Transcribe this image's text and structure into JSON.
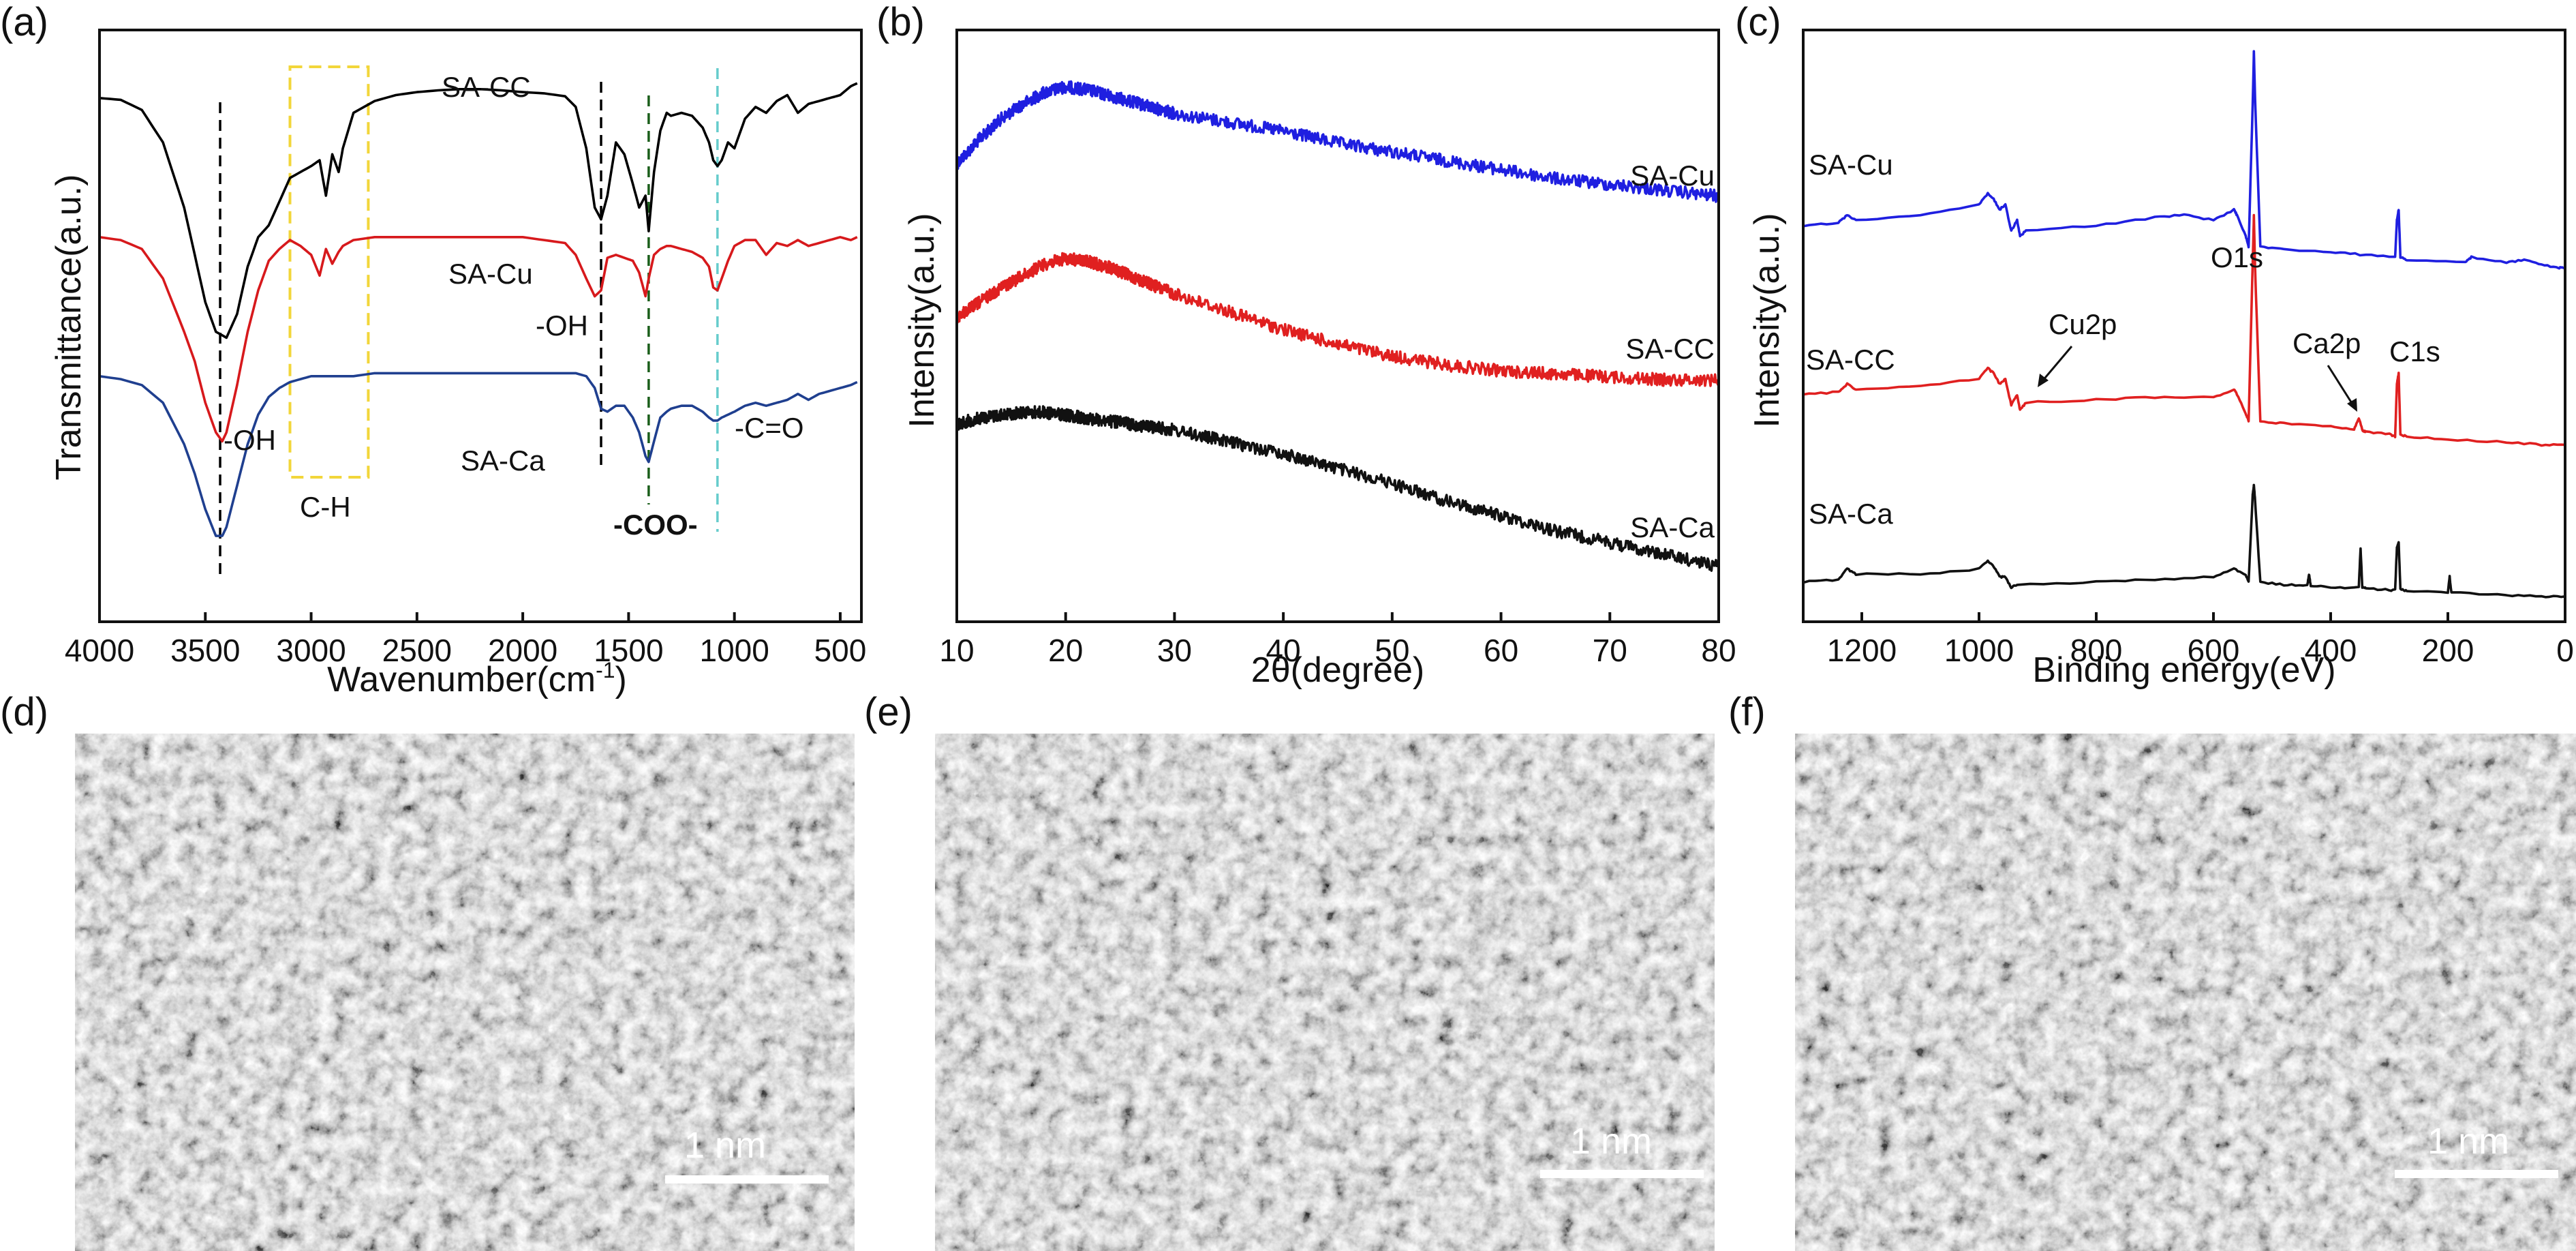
{
  "chart_data": [
    {
      "id": "a",
      "type": "line",
      "panel_label": "(a)",
      "xlabel": "Wavenumber(cm",
      "xlabel_sup": "-1",
      "xlabel_end": ")",
      "ylabel": "Transmittance(a.u.)",
      "xlim": [
        4000,
        400
      ],
      "x_ticks": [
        4000,
        3500,
        3000,
        2500,
        2000,
        1500,
        1000,
        500
      ],
      "x_tick_labels": [
        "4000",
        "3500",
        "3000",
        "2500",
        "2000",
        "1500",
        "1000",
        "500"
      ],
      "colors": [
        "#000000",
        "#d7191c",
        "#1f3f8f"
      ],
      "series": [
        {
          "name": "SA-CC",
          "color": "#000000",
          "x": [
            4000,
            3900,
            3800,
            3700,
            3600,
            3550,
            3500,
            3450,
            3400,
            3350,
            3300,
            3250,
            3200,
            3150,
            3100,
            3050,
            3000,
            2960,
            2930,
            2900,
            2870,
            2850,
            2800,
            2700,
            2600,
            2500,
            2400,
            2300,
            2200,
            2100,
            2000,
            1900,
            1800,
            1750,
            1700,
            1660,
            1630,
            1600,
            1560,
            1520,
            1480,
            1450,
            1420,
            1405,
            1380,
            1350,
            1320,
            1300,
            1250,
            1200,
            1150,
            1120,
            1100,
            1080,
            1060,
            1030,
            1000,
            950,
            900,
            850,
            800,
            750,
            700,
            650,
            600,
            550,
            500,
            450,
            420
          ],
          "y": [
            96.5,
            96.2,
            94.5,
            89,
            78,
            70,
            62,
            57,
            56,
            60,
            68,
            73,
            75,
            79,
            83,
            84,
            85,
            86,
            80,
            87,
            84,
            88,
            94,
            96,
            97,
            97.5,
            97.8,
            98,
            98,
            97.8,
            97.5,
            97.3,
            96.8,
            95,
            88,
            78,
            76,
            80,
            89,
            87,
            82,
            78,
            80,
            74,
            84,
            91,
            94,
            93.5,
            94,
            93.5,
            91.5,
            89,
            86,
            85,
            86,
            89,
            88,
            93,
            95,
            94,
            96,
            97,
            94,
            95.5,
            96,
            96.5,
            97,
            98.5,
            99
          ]
        },
        {
          "name": "SA-Cu",
          "color": "#d7191c",
          "x": [
            4000,
            3900,
            3800,
            3700,
            3600,
            3550,
            3500,
            3450,
            3420,
            3400,
            3350,
            3300,
            3250,
            3200,
            3150,
            3100,
            3050,
            3000,
            2960,
            2930,
            2900,
            2870,
            2850,
            2800,
            2700,
            2600,
            2500,
            2400,
            2300,
            2200,
            2100,
            2000,
            1900,
            1800,
            1750,
            1700,
            1660,
            1630,
            1600,
            1560,
            1520,
            1480,
            1450,
            1420,
            1405,
            1380,
            1350,
            1320,
            1300,
            1250,
            1200,
            1150,
            1120,
            1100,
            1080,
            1060,
            1030,
            1000,
            950,
            900,
            850,
            800,
            750,
            700,
            650,
            600,
            550,
            500,
            450,
            420
          ],
          "y": [
            73,
            72.5,
            71,
            66,
            57,
            52,
            45,
            40,
            38.5,
            40,
            48,
            57,
            64,
            69,
            71,
            72.5,
            71.5,
            70,
            66.5,
            71,
            68.5,
            70.5,
            71.5,
            72.5,
            73,
            73,
            73,
            73,
            73,
            73,
            73,
            73,
            72.5,
            72,
            70,
            66,
            63,
            64,
            69.5,
            70,
            69.5,
            69,
            67,
            63,
            66,
            70,
            71,
            71.5,
            71.5,
            71,
            70.5,
            69.5,
            68,
            64.5,
            64,
            66,
            69,
            71.5,
            72.5,
            72.5,
            70,
            72,
            71.5,
            72.5,
            71.5,
            72,
            72.5,
            73,
            72.5,
            73
          ]
        },
        {
          "name": "SA-Ca",
          "color": "#1f3f8f",
          "x": [
            4000,
            3900,
            3800,
            3700,
            3600,
            3550,
            3500,
            3450,
            3420,
            3400,
            3350,
            3300,
            3250,
            3200,
            3150,
            3100,
            3050,
            3000,
            2950,
            2900,
            2850,
            2800,
            2700,
            2600,
            2500,
            2400,
            2300,
            2200,
            2100,
            2000,
            1900,
            1800,
            1750,
            1700,
            1660,
            1630,
            1600,
            1560,
            1520,
            1480,
            1450,
            1420,
            1405,
            1380,
            1350,
            1320,
            1300,
            1250,
            1200,
            1150,
            1120,
            1100,
            1080,
            1060,
            1030,
            1000,
            950,
            900,
            850,
            800,
            750,
            700,
            650,
            600,
            550,
            500,
            450,
            420
          ],
          "y": [
            49.5,
            49,
            48,
            45,
            38,
            33,
            27,
            22.5,
            22.5,
            24,
            31,
            38,
            43,
            46,
            47.5,
            48.5,
            49,
            49.5,
            49.5,
            49.5,
            49.5,
            49.5,
            50,
            50,
            50,
            50,
            50,
            50,
            50,
            50,
            50,
            50,
            50,
            49.5,
            47.5,
            44,
            43.5,
            44.5,
            44.5,
            42.5,
            40,
            36,
            35,
            38.5,
            42.5,
            43.5,
            44,
            44.5,
            44.5,
            43.5,
            42.5,
            42,
            42,
            42.5,
            43,
            43.5,
            44.5,
            45,
            44.5,
            45,
            45.5,
            46.5,
            45.5,
            46.5,
            47,
            47.5,
            48,
            48.5
          ]
        }
      ],
      "series_labels": [
        "SA-CC",
        "SA-Cu",
        "SA-Ca"
      ],
      "annotations": [
        "-OH",
        "-OH",
        "C-H",
        "-COO-",
        "-C=O"
      ],
      "guide_lines_x": [
        3430,
        1630,
        1405,
        1080
      ],
      "guide_colors": [
        "#000000",
        "#000000",
        "#1a5e1a",
        "#66cccc"
      ],
      "box_x_range": [
        3100,
        2730
      ],
      "box_color": "#f2d63a"
    },
    {
      "id": "b",
      "type": "line",
      "panel_label": "(b)",
      "xlabel": "2θ(degree)",
      "ylabel": "Intensity(a.u.)",
      "xlim": [
        10,
        80
      ],
      "ylim": [
        0,
        100
      ],
      "x_ticks": [
        10,
        20,
        30,
        40,
        50,
        60,
        70,
        80
      ],
      "x_tick_labels": [
        "10",
        "20",
        "30",
        "40",
        "50",
        "60",
        "70",
        "80"
      ],
      "series": [
        {
          "name": "SA-Cu",
          "color": "#1f1fe0",
          "x": [
            10,
            12,
            14,
            16,
            18,
            20,
            22,
            24,
            26,
            28,
            30,
            35,
            40,
            45,
            50,
            55,
            60,
            65,
            70,
            75,
            80
          ],
          "y": [
            82,
            86,
            89.5,
            92,
            94,
            95,
            94.5,
            93.5,
            92.5,
            91.5,
            90.5,
            89,
            87.5,
            85.5,
            84,
            82.5,
            81,
            79.5,
            78.5,
            77.5,
            76.5
          ]
        },
        {
          "name": "SA-CC",
          "color": "#e02020",
          "x": [
            10,
            12,
            14,
            16,
            18,
            20,
            22,
            24,
            26,
            28,
            30,
            35,
            40,
            45,
            50,
            55,
            60,
            65,
            70,
            75,
            80
          ],
          "y": [
            56,
            58.5,
            61,
            63,
            65,
            66,
            65.5,
            64.5,
            63,
            61.5,
            60,
            57,
            54,
            51.5,
            49.5,
            48,
            47,
            46.5,
            46,
            45.5,
            45.5
          ]
        },
        {
          "name": "SA-Ca",
          "color": "#111111",
          "x": [
            10,
            12,
            14,
            16,
            18,
            20,
            22,
            24,
            26,
            28,
            30,
            35,
            40,
            45,
            50,
            55,
            60,
            65,
            70,
            75,
            80
          ],
          "y": [
            38,
            39,
            39.5,
            40,
            40,
            39.5,
            39,
            38.5,
            38,
            37.5,
            37,
            35,
            33,
            30.5,
            28,
            25,
            22.5,
            20,
            18,
            16,
            14
          ]
        }
      ],
      "series_labels": [
        "SA-Cu",
        "SA-CC",
        "SA-Ca"
      ]
    },
    {
      "id": "c",
      "type": "line",
      "panel_label": "(c)",
      "xlabel": "Binding energy(eV)",
      "ylabel": "Intensity(a.u.)",
      "xlim": [
        1300,
        0
      ],
      "ylim": [
        0,
        100
      ],
      "x_ticks": [
        1200,
        1000,
        800,
        600,
        400,
        200,
        0
      ],
      "x_tick_labels": [
        "1200",
        "1000",
        "800",
        "600",
        "400",
        "200",
        "0"
      ],
      "series": [
        {
          "name": "SA-Cu",
          "color": "#1f1fe0",
          "x": [
            1300,
            1240,
            1225,
            1210,
            1100,
            1000,
            985,
            975,
            965,
            955,
            945,
            935,
            930,
            920,
            800,
            700,
            650,
            600,
            565,
            560,
            545,
            540,
            533,
            531,
            529,
            520,
            480,
            400,
            350,
            290,
            287,
            284,
            281,
            270,
            170,
            160,
            100,
            70,
            40,
            10,
            0
          ],
          "y": [
            73,
            73.5,
            75,
            74,
            75,
            77,
            79,
            78,
            76,
            77,
            72,
            74,
            71,
            72,
            73,
            74.5,
            75,
            74,
            76,
            75,
            71,
            69,
            96,
            106,
            97,
            69,
            68.5,
            68,
            67.5,
            67,
            74,
            76,
            67,
            66.5,
            66,
            67,
            66,
            66.5,
            65.5,
            65,
            65
          ]
        },
        {
          "name": "SA-CC",
          "color": "#e02020",
          "x": [
            1300,
            1240,
            1225,
            1210,
            1100,
            1000,
            985,
            975,
            965,
            955,
            945,
            935,
            930,
            920,
            800,
            700,
            600,
            565,
            560,
            545,
            540,
            533,
            531,
            529,
            520,
            480,
            400,
            360,
            352,
            345,
            340,
            300,
            290,
            287,
            284,
            281,
            270,
            200,
            100,
            40,
            0
          ],
          "y": [
            41,
            41.5,
            43,
            42,
            42.5,
            44,
            46,
            45,
            43,
            44,
            39,
            41,
            38,
            39.5,
            40,
            40.5,
            40.5,
            42,
            41,
            37.5,
            36,
            66,
            75,
            65,
            36,
            35.5,
            35,
            34.5,
            36.5,
            34,
            34,
            33.5,
            33,
            43,
            45,
            33.5,
            33,
            32.5,
            32,
            31.5,
            31.5
          ]
        },
        {
          "name": "SA-Ca",
          "color": "#111111",
          "x": [
            1300,
            1240,
            1225,
            1210,
            1100,
            1000,
            985,
            975,
            965,
            955,
            945,
            935,
            800,
            700,
            600,
            565,
            545,
            540,
            533,
            531,
            529,
            520,
            480,
            440,
            437,
            434,
            400,
            352,
            349,
            346,
            340,
            300,
            290,
            287,
            284,
            281,
            270,
            200,
            197,
            194,
            100,
            40,
            0
          ],
          "y": [
            5.5,
            6,
            8,
            7,
            7,
            8,
            9.5,
            8.5,
            6.5,
            6.5,
            4.5,
            5,
            5.5,
            6,
            6.5,
            8,
            7,
            5.5,
            22,
            24,
            21,
            5.5,
            5,
            4.8,
            7,
            4.8,
            4.5,
            4.5,
            12,
            4.5,
            4.3,
            4,
            4,
            12,
            13,
            4.2,
            3.8,
            3.5,
            6.5,
            3.5,
            3,
            2.8,
            2.8
          ]
        }
      ],
      "series_labels": [
        "SA-Cu",
        "SA-CC",
        "SA-Ca"
      ],
      "annotations": [
        "O1s",
        "Cu2p",
        "Ca2p",
        "C1s"
      ]
    }
  ],
  "sem_panels": [
    {
      "panel_label": "(d)",
      "scalebar": "1 nm"
    },
    {
      "panel_label": "(e)",
      "scalebar": "1 nm"
    },
    {
      "panel_label": "(f)",
      "scalebar": "1 nm"
    }
  ]
}
